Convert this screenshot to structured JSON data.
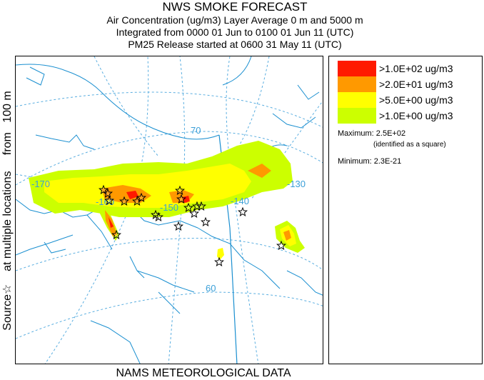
{
  "header": {
    "title": "NWS SMOKE FORECAST",
    "line1": "Air Concentration (ug/m3) Layer Average    0 m and  5000 m",
    "line2": "Integrated from 0000 01 Jun to 0100 01 Jun 11 (UTC)",
    "line3": "PM25 Release started at 0600 31 May 11 (UTC)"
  },
  "side_label": "Source☆    at multiple locations     from   100 m",
  "footer": "NAMS METEOROLOGICAL DATA",
  "legend": {
    "items": [
      {
        "label": ">1.0E+02 ug/m3",
        "color": "#ff1a00"
      },
      {
        "label": ">2.0E+01 ug/m3",
        "color": "#ff9900"
      },
      {
        "label": ">5.0E+00 ug/m3",
        "color": "#ffff00"
      },
      {
        "label": ">1.0E+00 ug/m3",
        "color": "#ccff00"
      }
    ],
    "maximum_label": "Maximum: 2.5E+02",
    "maximum_note": "(identified as a square)",
    "minimum_label": "Minimum: 2.3E-21"
  },
  "map": {
    "graticule_labels": {
      "lon_170": "-170",
      "lon_160": "-160",
      "lon_150": "-150",
      "lon_140": "-140",
      "lon_130": "-130",
      "lat_70": "70",
      "lat_60": "60"
    },
    "colors": {
      "graticule": "#3a9fd8",
      "coast": "#1a8fd0"
    },
    "source_marker_icon": "star-outline"
  }
}
